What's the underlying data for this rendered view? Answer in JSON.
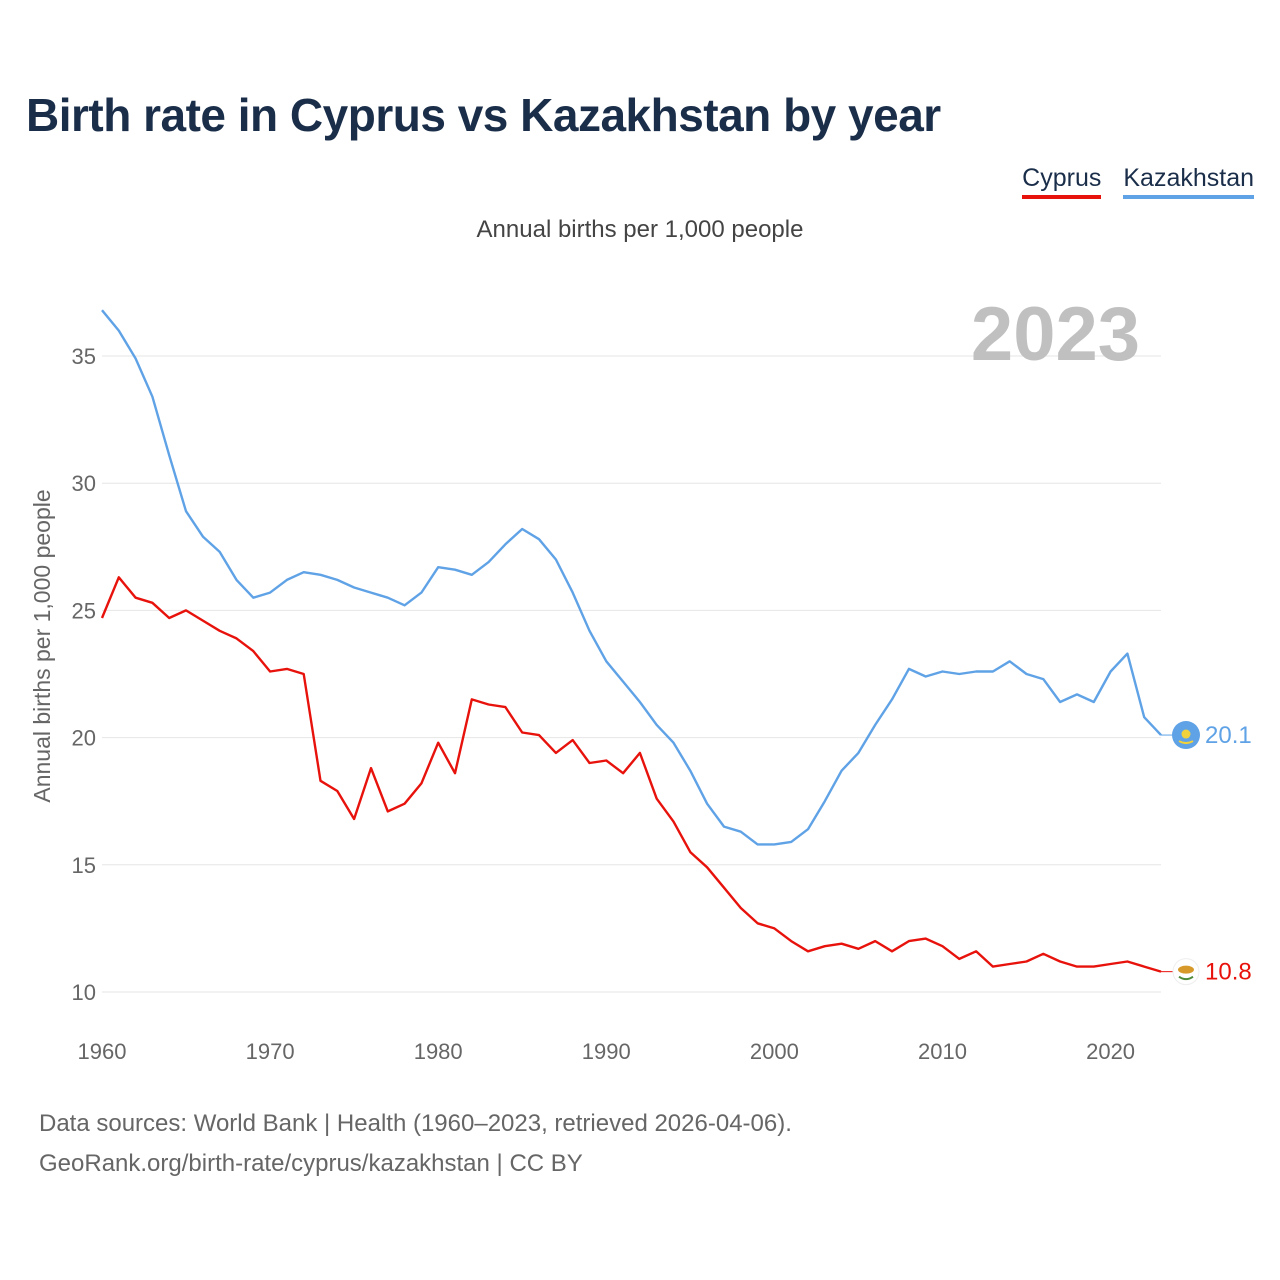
{
  "title": "Birth rate in Cyprus vs Kazakhstan by year",
  "subtitle": "Annual births per 1,000 people",
  "footer": {
    "sources": "Data sources: World Bank | Health (1960–2023, retrieved 2026-04-06).",
    "credit": "GeoRank.org/birth-rate/cyprus/kazakhstan | CC BY"
  },
  "colors": {
    "cyprus": "#e8120c",
    "kazakhstan": "#5fa2e6",
    "grid": "#e6e6e6",
    "axis_text": "#666666",
    "year_watermark": "#c0c0c0"
  },
  "chart_data": {
    "type": "line",
    "title": "Birth rate in Cyprus vs Kazakhstan by year",
    "xlabel": "",
    "ylabel": "Annual births per 1,000 people",
    "xlim": [
      1960,
      2023
    ],
    "ylim": [
      10,
      37
    ],
    "yticks": [
      10,
      15,
      20,
      25,
      30,
      35
    ],
    "xticks": [
      1960,
      1970,
      1980,
      1990,
      2000,
      2010,
      2020
    ],
    "grid": true,
    "legend_position": "top-right",
    "year_label": "2023",
    "x": [
      1960,
      1961,
      1962,
      1963,
      1964,
      1965,
      1966,
      1967,
      1968,
      1969,
      1970,
      1971,
      1972,
      1973,
      1974,
      1975,
      1976,
      1977,
      1978,
      1979,
      1980,
      1981,
      1982,
      1983,
      1984,
      1985,
      1986,
      1987,
      1988,
      1989,
      1990,
      1991,
      1992,
      1993,
      1994,
      1995,
      1996,
      1997,
      1998,
      1999,
      2000,
      2001,
      2002,
      2003,
      2004,
      2005,
      2006,
      2007,
      2008,
      2009,
      2010,
      2011,
      2012,
      2013,
      2014,
      2015,
      2016,
      2017,
      2018,
      2019,
      2020,
      2021,
      2022,
      2023
    ],
    "series": [
      {
        "name": "Cyprus",
        "color": "#e8120c",
        "end_label": "10.8",
        "values": [
          24.7,
          26.3,
          25.5,
          25.3,
          24.7,
          25.0,
          24.6,
          24.2,
          23.9,
          23.4,
          22.6,
          22.7,
          22.5,
          18.3,
          17.9,
          16.8,
          18.8,
          17.1,
          17.4,
          18.2,
          19.8,
          18.6,
          21.5,
          21.3,
          21.2,
          20.2,
          20.1,
          19.4,
          19.9,
          19.0,
          19.1,
          18.6,
          19.4,
          17.6,
          16.7,
          15.5,
          14.9,
          14.1,
          13.3,
          12.7,
          12.5,
          12.0,
          11.6,
          11.8,
          11.9,
          11.7,
          12.0,
          11.6,
          12.0,
          12.1,
          11.8,
          11.3,
          11.6,
          11.0,
          11.1,
          11.2,
          11.5,
          11.2,
          11.0,
          11.0,
          11.1,
          11.2,
          11.0,
          10.8
        ]
      },
      {
        "name": "Kazakhstan",
        "color": "#5fa2e6",
        "end_label": "20.1",
        "values": [
          36.8,
          36.0,
          34.9,
          33.4,
          31.1,
          28.9,
          27.9,
          27.3,
          26.2,
          25.5,
          25.7,
          26.2,
          26.5,
          26.4,
          26.2,
          25.9,
          25.7,
          25.5,
          25.2,
          25.7,
          26.7,
          26.6,
          26.4,
          26.9,
          27.6,
          28.2,
          27.8,
          27.0,
          25.7,
          24.2,
          23.0,
          22.2,
          21.4,
          20.5,
          19.8,
          18.7,
          17.4,
          16.5,
          16.3,
          15.8,
          15.8,
          15.9,
          16.4,
          17.5,
          18.7,
          19.4,
          20.5,
          21.5,
          22.7,
          22.4,
          22.6,
          22.5,
          22.6,
          22.6,
          23.0,
          22.5,
          22.3,
          21.4,
          21.7,
          21.4,
          22.6,
          23.3,
          20.8,
          20.1
        ]
      }
    ]
  }
}
